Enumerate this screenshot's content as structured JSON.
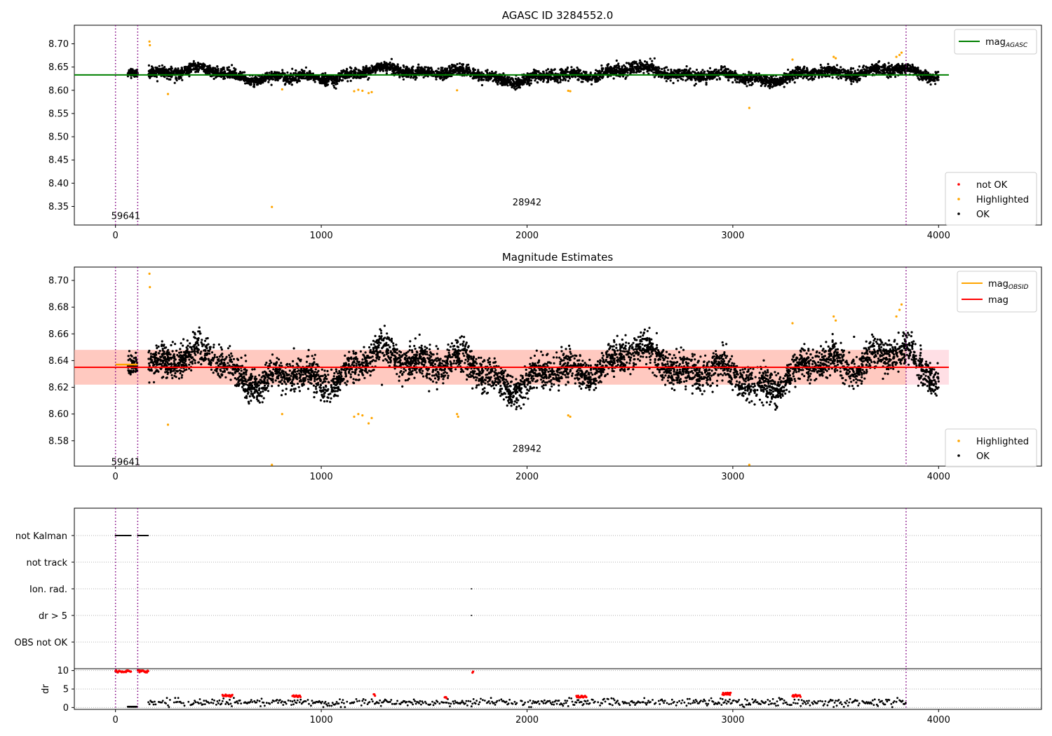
{
  "chart_data": [
    {
      "type": "scatter",
      "title": "AGASC ID 3284552.0",
      "xlabel": "",
      "ylabel": "",
      "xlim": [
        -200,
        4500
      ],
      "ylim": [
        8.31,
        8.74
      ],
      "xticks": [
        0,
        1000,
        2000,
        3000,
        4000
      ],
      "yticks": [
        8.35,
        8.4,
        8.45,
        8.5,
        8.55,
        8.6,
        8.65,
        8.7
      ],
      "grid": false,
      "vlines": [
        0,
        108,
        3842
      ],
      "text_labels": [
        {
          "x": 50,
          "y": 8.33,
          "text": "59641"
        },
        {
          "x": 2000,
          "y": 8.36,
          "text": "28942"
        }
      ],
      "line_legend": {
        "position": "top-right",
        "entries": [
          {
            "label": "mag",
            "sub": "AGASC",
            "color": "#008000"
          }
        ]
      },
      "point_legend": {
        "position": "bottom-right",
        "entries": [
          {
            "label": "not OK",
            "color": "#ff0000"
          },
          {
            "label": "Highlighted",
            "color": "#ffa500"
          },
          {
            "label": "OK",
            "color": "#000000"
          }
        ]
      },
      "hline": {
        "y": 8.633,
        "x0": -200,
        "x1": 4050,
        "color": "#008000"
      },
      "series_data": {
        "ok_segments": [
          {
            "x0": 60,
            "x1": 108,
            "mean": 8.638,
            "noise": 0.008
          },
          {
            "x0": 160,
            "x1": 4000,
            "mean": 8.634,
            "noise": 0.01,
            "wave": true
          }
        ],
        "highlighted": [
          [
            165,
            8.705
          ],
          [
            167,
            8.697
          ],
          [
            255,
            8.592
          ],
          [
            760,
            8.349
          ],
          [
            810,
            8.602
          ],
          [
            1160,
            8.598
          ],
          [
            1180,
            8.601
          ],
          [
            1200,
            8.599
          ],
          [
            1230,
            8.594
          ],
          [
            1245,
            8.596
          ],
          [
            1660,
            8.6
          ],
          [
            2200,
            8.599
          ],
          [
            2210,
            8.598
          ],
          [
            3080,
            8.562
          ],
          [
            3290,
            8.666
          ],
          [
            3490,
            8.672
          ],
          [
            3500,
            8.669
          ],
          [
            3795,
            8.672
          ],
          [
            3810,
            8.676
          ],
          [
            3820,
            8.681
          ]
        ]
      }
    },
    {
      "type": "scatter",
      "title": "Magnitude Estimates",
      "xlabel": "",
      "ylabel": "",
      "xlim": [
        -200,
        4500
      ],
      "ylim": [
        8.561,
        8.71
      ],
      "xticks": [
        0,
        1000,
        2000,
        3000,
        4000
      ],
      "yticks": [
        8.58,
        8.6,
        8.62,
        8.64,
        8.66,
        8.68,
        8.7
      ],
      "grid": false,
      "vlines": [
        0,
        108,
        3842
      ],
      "text_labels": [
        {
          "x": 50,
          "y": 8.5645,
          "text": "59641"
        },
        {
          "x": 2000,
          "y": 8.5745,
          "text": "28942"
        }
      ],
      "line_legend": {
        "position": "top-right",
        "entries": [
          {
            "label": "mag",
            "sub": "OBSID",
            "color": "#ffa500"
          },
          {
            "label": "mag",
            "sub": "",
            "color": "#ff0000"
          }
        ]
      },
      "point_legend": {
        "position": "bottom-right",
        "entries": [
          {
            "label": "Highlighted",
            "color": "#ffa500"
          },
          {
            "label": "OK",
            "color": "#000000"
          }
        ]
      },
      "mag_line": {
        "y": 8.635,
        "x0": -200,
        "x1": 4050,
        "color": "#ff0000"
      },
      "mag_band": {
        "y0": 8.622,
        "y1": 8.648,
        "x0": -200,
        "x1": 4050,
        "color": "#ffc0cb"
      },
      "obsid_band": {
        "y0": 8.622,
        "y1": 8.648,
        "x0": -200,
        "x1": 3842,
        "color": "#ffa07a"
      },
      "obsid_line": {
        "y": 8.637,
        "x0": 0,
        "x1": 108,
        "color": "#ffa500"
      },
      "series_data": {
        "ok_segments": [
          {
            "x0": 60,
            "x1": 108,
            "mean": 8.637,
            "noise": 0.006
          },
          {
            "x0": 160,
            "x1": 4000,
            "mean": 8.634,
            "noise": 0.01,
            "wave": true
          }
        ],
        "highlighted": [
          [
            165,
            8.705
          ],
          [
            167,
            8.695
          ],
          [
            255,
            8.592
          ],
          [
            760,
            8.562
          ],
          [
            810,
            8.6
          ],
          [
            1160,
            8.598
          ],
          [
            1180,
            8.6
          ],
          [
            1200,
            8.599
          ],
          [
            1230,
            8.593
          ],
          [
            1245,
            8.597
          ],
          [
            1660,
            8.6
          ],
          [
            1665,
            8.598
          ],
          [
            2200,
            8.599
          ],
          [
            2210,
            8.598
          ],
          [
            3080,
            8.562
          ],
          [
            3290,
            8.668
          ],
          [
            3490,
            8.673
          ],
          [
            3500,
            8.67
          ],
          [
            3795,
            8.673
          ],
          [
            3810,
            8.678
          ],
          [
            3820,
            8.682
          ]
        ]
      }
    },
    {
      "type": "scatter",
      "title": "",
      "xlabel": "",
      "ylabel": "",
      "xlim": [
        -200,
        4500
      ],
      "categories": [
        "not Kalman",
        "not track",
        "Ion. rad.",
        "dr > 5",
        "OBS not OK"
      ],
      "grid": true,
      "vlines": [
        0,
        108,
        3842
      ],
      "flag_points": [
        {
          "category": "not Kalman",
          "ranges": [
            [
              0,
              75
            ],
            [
              108,
              160
            ]
          ]
        },
        {
          "category": "Ion. rad.",
          "x": [
            1730
          ]
        },
        {
          "category": "dr > 5",
          "x": [
            1730
          ]
        }
      ]
    },
    {
      "type": "scatter",
      "title": "",
      "xlabel": "",
      "ylabel": "dr",
      "xlim": [
        -200,
        4500
      ],
      "ylim": [
        -0.5,
        10.5
      ],
      "xticks": [
        0,
        1000,
        2000,
        3000,
        4000
      ],
      "yticks": [
        0,
        5,
        10
      ],
      "grid": true,
      "vlines": [
        0,
        108,
        3842
      ],
      "series_data": {
        "red_clusters": [
          {
            "x0": 0,
            "x1": 75,
            "y": 9.8
          },
          {
            "x0": 108,
            "x1": 160,
            "y": 9.8
          },
          {
            "x0": 520,
            "x1": 570,
            "y": 3.2
          },
          {
            "x0": 860,
            "x1": 900,
            "y": 3.0
          },
          {
            "x0": 1255,
            "x1": 1262,
            "y": 3.3
          },
          {
            "x0": 1600,
            "x1": 1610,
            "y": 2.8
          },
          {
            "x0": 1735,
            "x1": 1740,
            "y": 9.7
          },
          {
            "x0": 2240,
            "x1": 2290,
            "y": 2.9
          },
          {
            "x0": 2950,
            "x1": 2990,
            "y": 3.7
          },
          {
            "x0": 3290,
            "x1": 3330,
            "y": 3.2
          }
        ],
        "black_range": {
          "x0": 160,
          "x1": 3842,
          "mean": 1.4,
          "noise": 0.5
        },
        "black_low": {
          "x0": 60,
          "x1": 105,
          "y": 0.2
        }
      }
    }
  ]
}
